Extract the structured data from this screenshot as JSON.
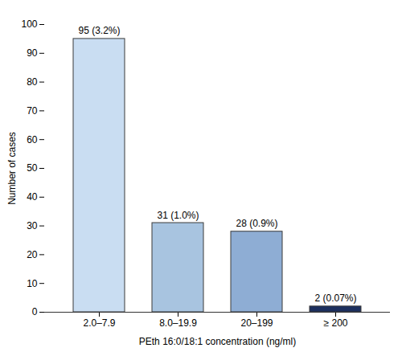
{
  "chart_data": {
    "type": "bar",
    "categories": [
      "2.0–7.9",
      "8.0–19.9",
      "20–199",
      "≥ 200"
    ],
    "values": [
      95,
      31,
      28,
      2
    ],
    "value_labels": [
      "95 (3.2%)",
      "31 (1.0%)",
      "28 (0.9%)",
      "2 (0.07%)"
    ],
    "colors": [
      "#c9ddf2",
      "#a8c4e0",
      "#8eadd4",
      "#1c2f5e"
    ],
    "xlabel": "PEth 16:0/18:1 concentration (ng/ml)",
    "ylabel": "Number of cases",
    "ylim": [
      0,
      100
    ],
    "yticks": [
      0,
      10,
      20,
      30,
      40,
      50,
      60,
      70,
      80,
      90,
      100
    ],
    "data_labels": true,
    "grid": false
  }
}
